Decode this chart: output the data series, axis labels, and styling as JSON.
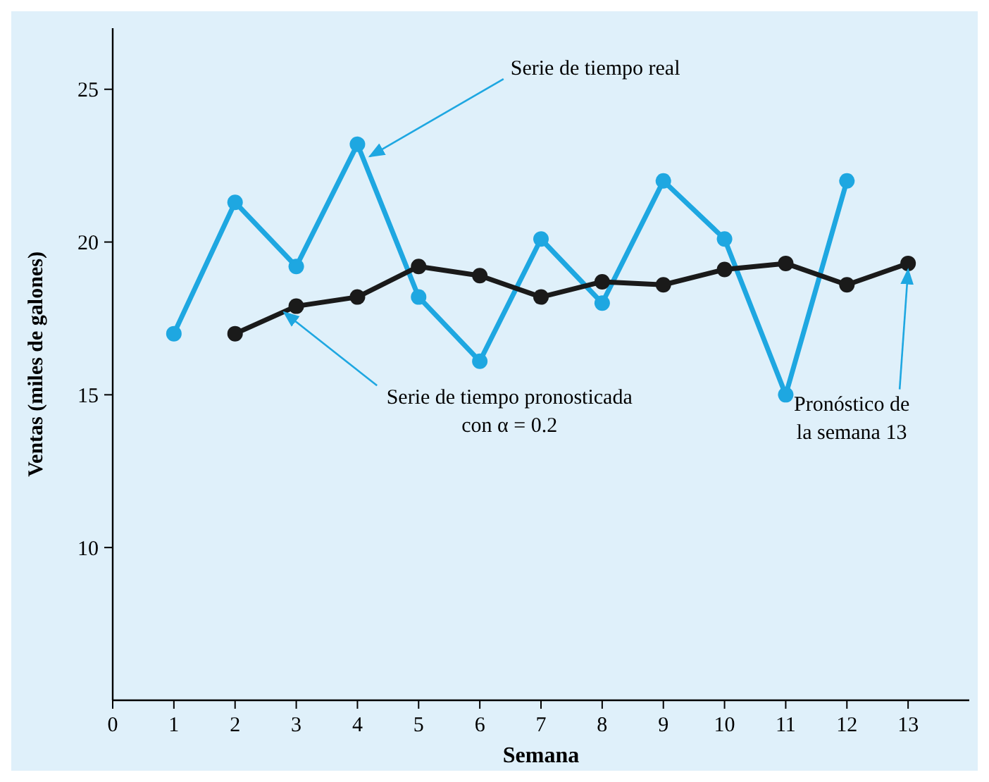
{
  "chart_data": {
    "type": "line",
    "xlabel": "Semana",
    "ylabel": "Ventas (miles de galones)",
    "xlim": [
      0,
      14
    ],
    "xticks": [
      0,
      1,
      2,
      3,
      4,
      5,
      6,
      7,
      8,
      9,
      10,
      11,
      12,
      13
    ],
    "ylim": [
      5,
      27
    ],
    "yticks": [
      10,
      15,
      20,
      25
    ],
    "grid": false,
    "marker": "circle",
    "line_style": "solid",
    "series": [
      {
        "color": "#1ea7e1",
        "x": [
          1,
          2,
          3,
          4,
          5,
          6,
          7,
          8,
          9,
          10,
          11,
          12
        ],
        "values": [
          17,
          21.3,
          19.2,
          23.2,
          18.2,
          16.1,
          20.1,
          18,
          22,
          20.1,
          15,
          22
        ]
      },
      {
        "color": "#1a1a1a",
        "x": [
          2,
          3,
          4,
          5,
          6,
          7,
          8,
          9,
          10,
          11,
          12,
          13
        ],
        "values": [
          17,
          17.9,
          18.2,
          19.2,
          18.9,
          18.2,
          18.7,
          18.6,
          19.1,
          19.3,
          18.6,
          19.3
        ]
      }
    ],
    "annotations": [
      {
        "text": "Serie de tiempo real",
        "x": 4.2,
        "y": 22.8
      },
      {
        "text": "Serie de tiempo pronosticada\ncon α = 0.2",
        "x": 2.8,
        "y": 17.7
      },
      {
        "text": "Pronóstico de la semana 13",
        "x": 13,
        "y": 19.1
      }
    ]
  }
}
